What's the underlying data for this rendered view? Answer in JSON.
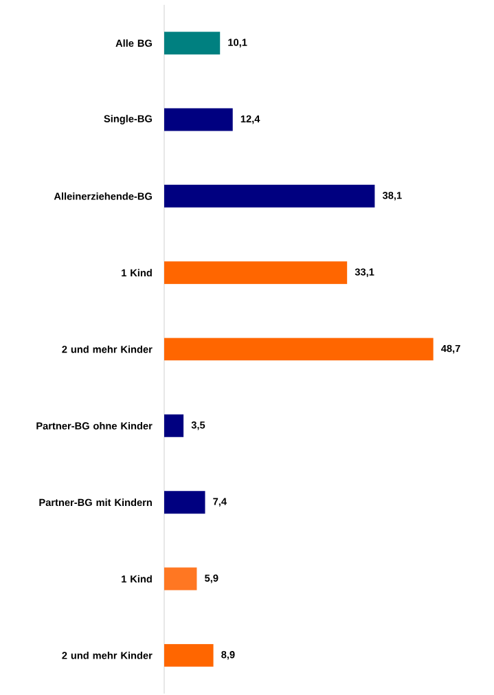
{
  "chart_data": {
    "type": "bar",
    "orientation": "horizontal",
    "categories": [
      "Alle BG",
      "Single-BG",
      "Alleinerziehende-BG",
      "1 Kind",
      "2 und mehr Kinder",
      "Partner-BG ohne Kinder",
      "Partner-BG mit Kindern",
      "1 Kind",
      "2 und mehr Kinder"
    ],
    "values": [
      10.1,
      12.4,
      38.1,
      33.1,
      48.7,
      3.5,
      7.4,
      5.9,
      8.9
    ],
    "value_labels": [
      "10,1",
      "12,4",
      "38,1",
      "33,1",
      "48,7",
      "3,5",
      "7,4",
      "5,9",
      "8,9"
    ],
    "colors": [
      "#008080",
      "#000080",
      "#000080",
      "#ff6600",
      "#ff6600",
      "#000080",
      "#000080",
      "#ff7722",
      "#ff6600"
    ]
  }
}
